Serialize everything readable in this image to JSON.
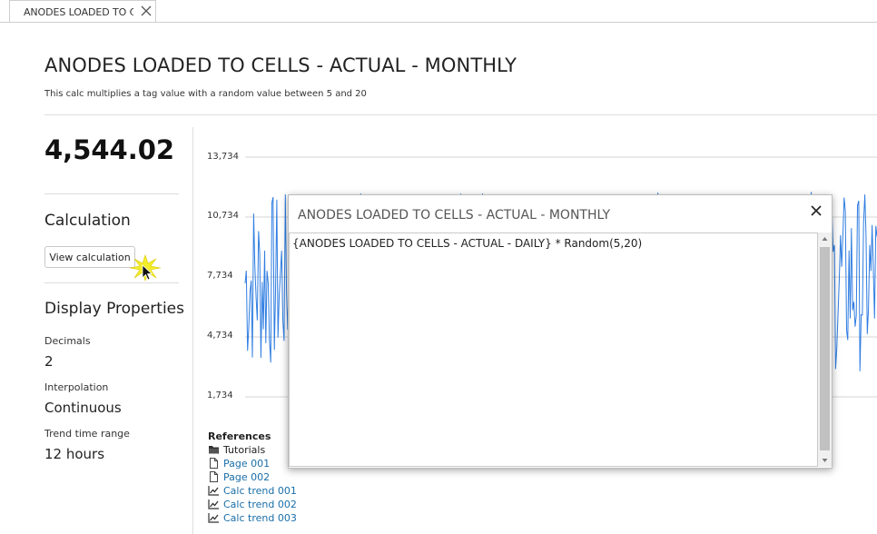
{
  "tab": {
    "label": "ANODES LOADED TO CELLS - ACTUAL - MONTHLY"
  },
  "header": {
    "title": "ANODES LOADED TO CELLS - ACTUAL - MONTHLY",
    "subtitle": "This calc multiplies a tag value with a random value between 5 and 20"
  },
  "sidebar": {
    "value": "4,544.02",
    "calculation_heading": "Calculation",
    "view_button": "View calculation",
    "display_heading": "Display Properties",
    "properties": [
      {
        "label": "Decimals",
        "value": "2"
      },
      {
        "label": "Interpolation",
        "value": "Continuous"
      },
      {
        "label": "Trend time range",
        "value": "12 hours"
      }
    ]
  },
  "chart_data": {
    "type": "line",
    "y_ticks": [
      "13,734",
      "10,734",
      "7,734",
      "4,734",
      "1,734"
    ],
    "ylim": [
      1734,
      13734
    ],
    "series": [
      {
        "values": []
      }
    ],
    "grid": true,
    "line_color": "#2f7de1"
  },
  "references": {
    "title": "References",
    "items": [
      {
        "label": "Tutorials",
        "icon": "folder-icon",
        "kind": "folder"
      },
      {
        "label": "Page 001",
        "icon": "page-icon",
        "kind": "link"
      },
      {
        "label": "Page 002",
        "icon": "page-icon",
        "kind": "link"
      },
      {
        "label": "Calc trend 001",
        "icon": "trend-icon",
        "kind": "link"
      },
      {
        "label": "Calc trend 002",
        "icon": "trend-icon",
        "kind": "link"
      },
      {
        "label": "Calc trend 003",
        "icon": "trend-icon",
        "kind": "link"
      }
    ]
  },
  "modal": {
    "title": "ANODES LOADED TO CELLS - ACTUAL - MONTHLY",
    "expression": "{ANODES LOADED TO CELLS - ACTUAL - DAILY} * Random(5,20)"
  }
}
